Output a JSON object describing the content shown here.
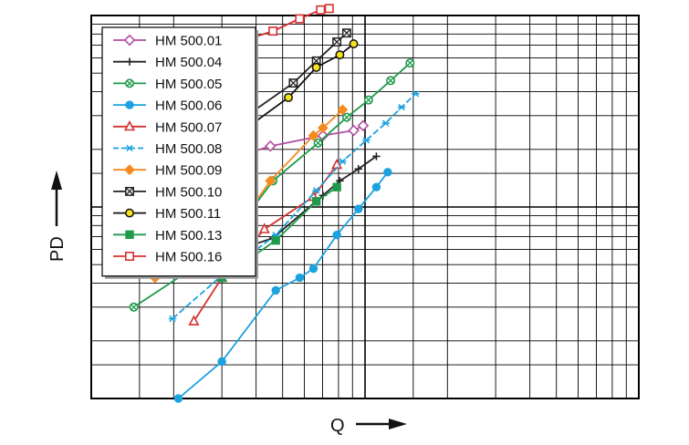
{
  "chart_data": {
    "type": "line",
    "xlabel": "Q",
    "ylabel": "PD",
    "xscale": "log",
    "yscale": "log",
    "xlim": [
      1,
      100
    ],
    "ylim": [
      1,
      100
    ],
    "grid": true,
    "legend_position": "top-left",
    "series": [
      {
        "name": "HM 500.01",
        "color": "#b04fa2",
        "marker": "diamond-open",
        "points": [
          [
            3.0,
            17.3
          ],
          [
            4.51,
            20.8
          ],
          [
            7.02,
            23.6
          ],
          [
            9.09,
            25.1
          ],
          [
            9.84,
            26.6
          ]
        ]
      },
      {
        "name": "HM 500.04",
        "color": "#222222",
        "marker": "plus",
        "points": [
          [
            3.0,
            5.61
          ],
          [
            4.61,
            6.88
          ],
          [
            7.02,
            11.5
          ],
          [
            8.09,
            13.7
          ],
          [
            9.46,
            15.8
          ],
          [
            11.0,
            18.4
          ]
        ]
      },
      {
        "name": "HM 500.05",
        "color": "#1f9a4b",
        "marker": "x-circle",
        "points": [
          [
            1.43,
            3.0
          ],
          [
            3.0,
            6.03
          ],
          [
            4.61,
            13.7
          ],
          [
            6.74,
            21.6
          ],
          [
            8.57,
            29.4
          ],
          [
            10.3,
            36.2
          ],
          [
            12.4,
            45.7
          ],
          [
            14.6,
            56.5
          ]
        ]
      },
      {
        "name": "HM 500.06",
        "color": "#1ca2df",
        "marker": "circle-filled",
        "points": [
          [
            2.08,
            1.0
          ],
          [
            3.0,
            1.56
          ],
          [
            4.72,
            3.67
          ],
          [
            5.77,
            4.27
          ],
          [
            6.48,
            4.77
          ],
          [
            7.89,
            7.14
          ],
          [
            9.46,
            9.77
          ],
          [
            11.0,
            12.7
          ],
          [
            12.1,
            15.2
          ]
        ]
      },
      {
        "name": "HM 500.07",
        "color": "#d4322f",
        "marker": "triangle-open",
        "points": [
          [
            2.37,
            2.53
          ],
          [
            3.0,
            4.27
          ],
          [
            4.29,
            7.66
          ],
          [
            6.48,
            11.3
          ],
          [
            7.89,
            16.6
          ]
        ]
      },
      {
        "name": "HM 500.08",
        "color": "#1ca2df",
        "marker": "asterisk",
        "points": [
          [
            1.98,
            2.61
          ],
          [
            3.0,
            4.39
          ],
          [
            4.72,
            7.14
          ],
          [
            6.64,
            12.2
          ],
          [
            8.28,
            17.3
          ],
          [
            10.1,
            22.3
          ],
          [
            11.9,
            27.4
          ],
          [
            13.6,
            33.2
          ],
          [
            15.3,
            39.0
          ]
        ]
      },
      {
        "name": "HM 500.09",
        "color": "#f58a1f",
        "marker": "diamond-filled",
        "points": [
          [
            1.71,
            4.27
          ],
          [
            3.0,
            6.03
          ],
          [
            4.51,
            13.7
          ],
          [
            6.48,
            23.6
          ],
          [
            7.02,
            25.9
          ],
          [
            8.28,
            32.2
          ]
        ]
      },
      {
        "name": "HM 500.10",
        "color": "#222222",
        "marker": "x-square",
        "points": [
          [
            1.8,
            11.3
          ],
          [
            3.0,
            24.3
          ],
          [
            5.47,
            44.4
          ],
          [
            6.64,
            57.9
          ],
          [
            7.89,
            72.8
          ],
          [
            8.57,
            81.0
          ]
        ]
      },
      {
        "name": "HM 500.11",
        "color": "#111111",
        "marker": "circle-yellow",
        "points": [
          [
            1.98,
            11.3
          ],
          [
            3.0,
            20.8
          ],
          [
            5.25,
            37.3
          ],
          [
            6.64,
            53.6
          ],
          [
            8.09,
            62.3
          ],
          [
            9.09,
            71.1
          ]
        ]
      },
      {
        "name": "HM 500.13",
        "color": "#1f9a4b",
        "marker": "square-filled",
        "points": [
          [
            3.0,
            4.27
          ],
          [
            4.72,
            6.69
          ],
          [
            6.64,
            10.7
          ],
          [
            7.89,
            12.7
          ]
        ]
      },
      {
        "name": "HM 500.16",
        "color": "#d4322f",
        "marker": "square-open",
        "points": [
          [
            1.98,
            52.4
          ],
          [
            3.0,
            68.0
          ],
          [
            4.61,
            82.9
          ],
          [
            5.77,
            96.1
          ],
          [
            6.88,
            107.0
          ],
          [
            7.4,
            108.8
          ]
        ]
      }
    ]
  }
}
